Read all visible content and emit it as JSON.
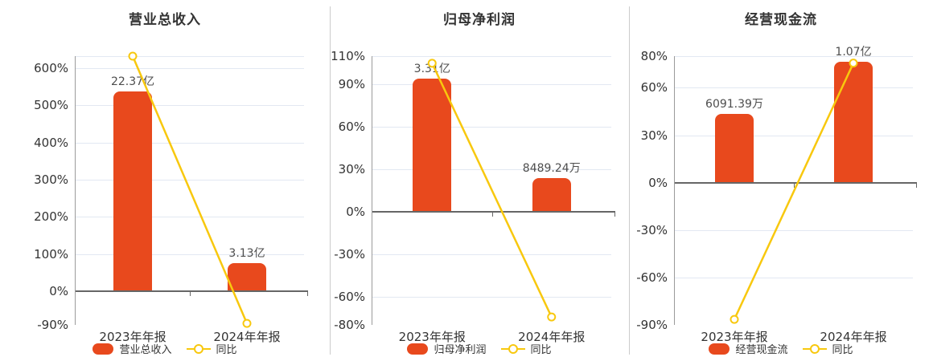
{
  "colors": {
    "bar": "#e8491d",
    "line": "#f8c80e",
    "grid": "#e2e8f2",
    "zero_axis": "#666666",
    "y_axis": "#9b9b9b",
    "text": "#333333",
    "value_label": "#4d4d4d",
    "separator": "#cccccc",
    "background": "#ffffff"
  },
  "chart_data": [
    {
      "type": "bar+line",
      "title": "营业总收入",
      "categories": [
        "2023年年报",
        "2024年年报"
      ],
      "bar_series": {
        "name": "营业总收入",
        "value_labels": [
          "22.37亿",
          "3.13亿"
        ],
        "heights_on_pct_axis": [
          537,
          76
        ]
      },
      "line_series": {
        "name": "同比",
        "values_pct": [
          632,
          -86
        ]
      },
      "y_axis": {
        "min": -90,
        "max": 632,
        "unit": "%",
        "ticks": [
          {
            "v": 632,
            "label": ""
          },
          {
            "v": 600,
            "label": "600%"
          },
          {
            "v": 500,
            "label": "500%"
          },
          {
            "v": 400,
            "label": "400%"
          },
          {
            "v": 300,
            "label": "300%"
          },
          {
            "v": 200,
            "label": "200%"
          },
          {
            "v": 100,
            "label": "100%"
          },
          {
            "v": 0,
            "label": "0%"
          },
          {
            "v": -90,
            "label": "-90%"
          }
        ]
      },
      "legend": [
        "营业总收入",
        "同比"
      ],
      "grid": true,
      "legend_position": "bottom"
    },
    {
      "type": "bar+line",
      "title": "归母净利润",
      "categories": [
        "2023年年报",
        "2024年年报"
      ],
      "bar_series": {
        "name": "归母净利润",
        "value_labels": [
          "3.31亿",
          "8489.24万"
        ],
        "heights_on_pct_axis": [
          94,
          24
        ]
      },
      "line_series": {
        "name": "同比",
        "values_pct": [
          105,
          -74.4
        ]
      },
      "y_axis": {
        "min": -80,
        "max": 110,
        "unit": "%",
        "ticks": [
          {
            "v": 110,
            "label": "110%"
          },
          {
            "v": 90,
            "label": "90%"
          },
          {
            "v": 60,
            "label": "60%"
          },
          {
            "v": 30,
            "label": "30%"
          },
          {
            "v": 0,
            "label": "0%"
          },
          {
            "v": -30,
            "label": "-30%"
          },
          {
            "v": -60,
            "label": "-60%"
          },
          {
            "v": -80,
            "label": "-80%"
          }
        ]
      },
      "legend": [
        "归母净利润",
        "同比"
      ],
      "grid": true,
      "legend_position": "bottom"
    },
    {
      "type": "bar+line",
      "title": "经营现金流",
      "categories": [
        "2023年年报",
        "2024年年报"
      ],
      "bar_series": {
        "name": "经营现金流",
        "value_labels": [
          "6091.39万",
          "1.07亿"
        ],
        "heights_on_pct_axis": [
          43.5,
          76.5
        ]
      },
      "line_series": {
        "name": "同比",
        "values_pct": [
          -86.5,
          75.6
        ]
      },
      "y_axis": {
        "min": -90,
        "max": 80,
        "unit": "%",
        "ticks": [
          {
            "v": 80,
            "label": "80%"
          },
          {
            "v": 60,
            "label": "60%"
          },
          {
            "v": 30,
            "label": "30%"
          },
          {
            "v": 0,
            "label": "0%"
          },
          {
            "v": -30,
            "label": "-30%"
          },
          {
            "v": -60,
            "label": "-60%"
          },
          {
            "v": -90,
            "label": "-90%"
          }
        ]
      },
      "legend": [
        "经营现金流",
        "同比"
      ],
      "grid": true,
      "legend_position": "bottom"
    }
  ]
}
